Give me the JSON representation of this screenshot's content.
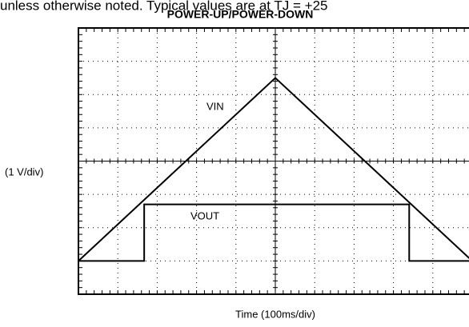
{
  "chart_data": {
    "type": "line",
    "header": "unless otherwise noted. Typical values are at TJ = +25",
    "title": "POWER-UP/POWER-DOWN",
    "ylabel": "(1 V/div)",
    "xlabel": "Time (100ms/div)",
    "xlim": [
      0,
      10
    ],
    "ylim": [
      0,
      8
    ],
    "xticks": [
      0,
      1,
      2,
      3,
      4,
      5,
      6,
      7,
      8,
      9,
      10
    ],
    "yticks": [
      0,
      1,
      2,
      3,
      4,
      5,
      6,
      7,
      8
    ],
    "grid": true,
    "series": [
      {
        "name": "VIN",
        "color": "#000000",
        "x": [
          0,
          5,
          10
        ],
        "values": [
          1,
          6.5,
          1
        ]
      },
      {
        "name": "VOUT",
        "color": "#000000",
        "x": [
          0,
          1.67,
          1.67,
          8.4,
          8.4,
          10
        ],
        "values": [
          1,
          1,
          2.7,
          2.7,
          1,
          1
        ]
      }
    ]
  }
}
